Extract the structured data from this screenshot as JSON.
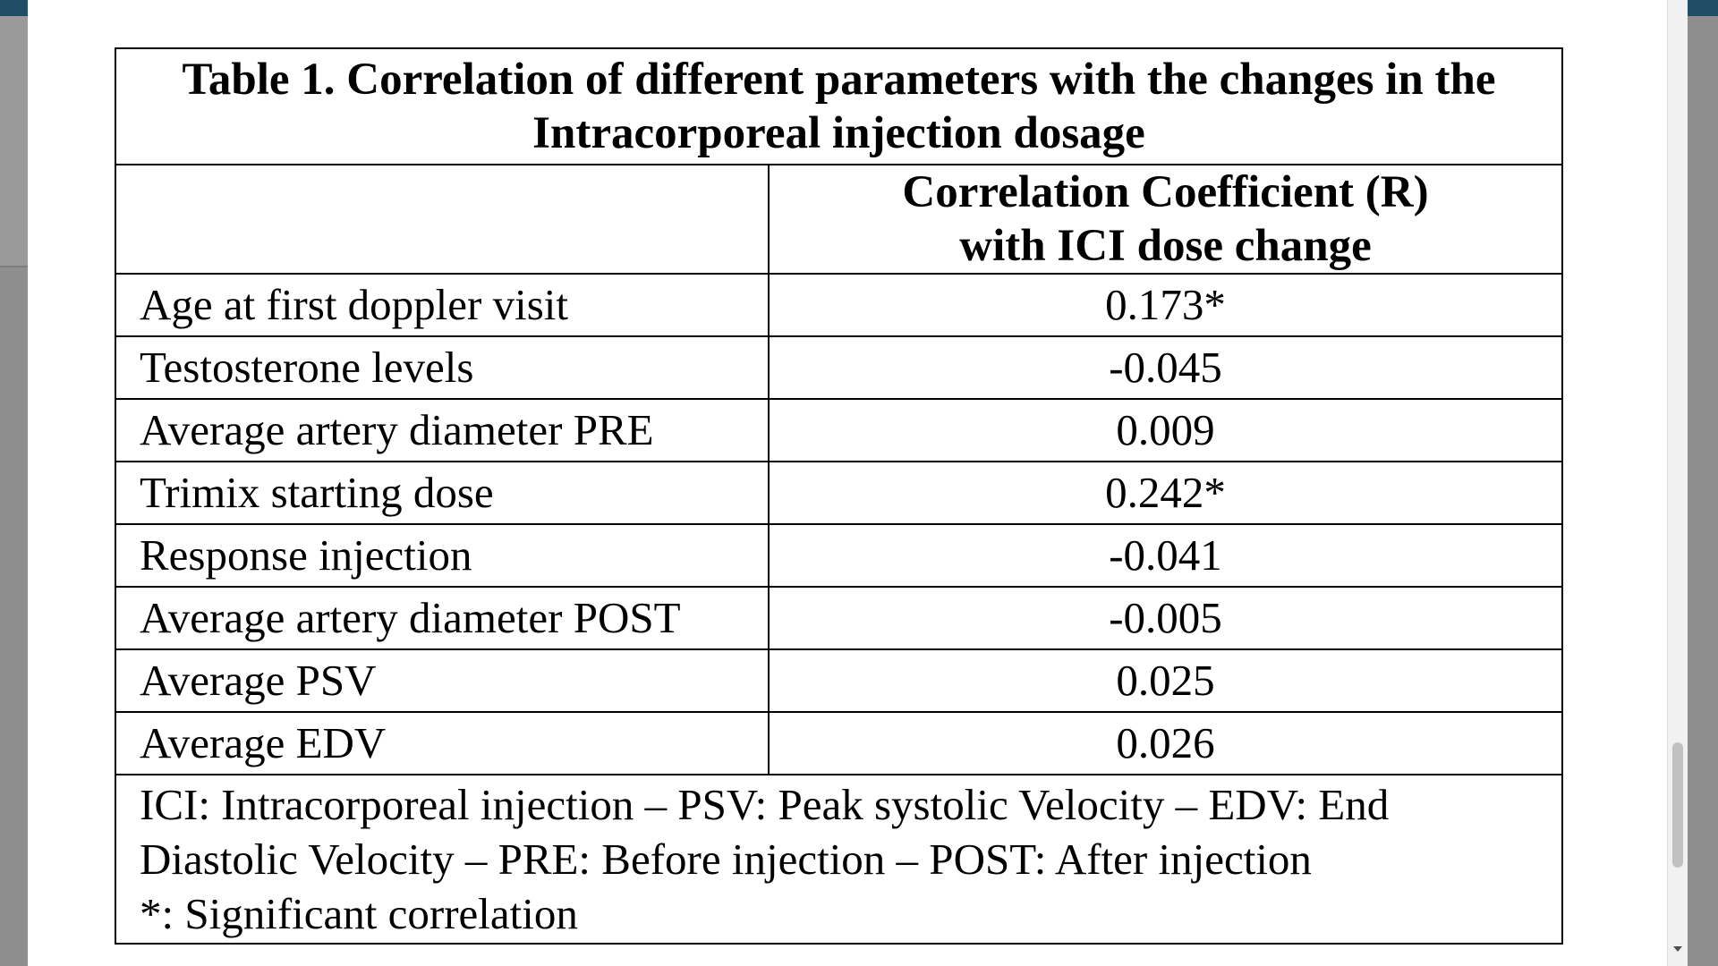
{
  "table": {
    "title_line1": "Table 1. Correlation of different parameters with the changes in the",
    "title_line2": "Intracorporeal injection dosage",
    "header_line1": "Correlation Coefficient (R)",
    "header_line2": "with ICI dose change",
    "rows": [
      {
        "label": "Age at first doppler visit",
        "value": "0.173*"
      },
      {
        "label": "Testosterone levels",
        "value": "-0.045"
      },
      {
        "label": "Average artery diameter PRE",
        "value": "0.009"
      },
      {
        "label": "Trimix starting dose",
        "value": "0.242*"
      },
      {
        "label": "Response injection",
        "value": "-0.041"
      },
      {
        "label": "Average artery diameter POST",
        "value": "-0.005"
      },
      {
        "label": "Average PSV",
        "value": "0.025"
      },
      {
        "label": "Average EDV",
        "value": "0.026"
      }
    ],
    "footnote_line1": "ICI: Intracorporeal injection – PSV: Peak systolic Velocity – EDV: End",
    "footnote_line2": "Diastolic Velocity – PRE: Before injection – POST: After injection",
    "footnote_line3": "*: Significant correlation"
  },
  "colors": {
    "backdrop": "#8e8e8e",
    "header_bar": "#1f4e66",
    "page": "#ffffff",
    "text": "#000000"
  }
}
